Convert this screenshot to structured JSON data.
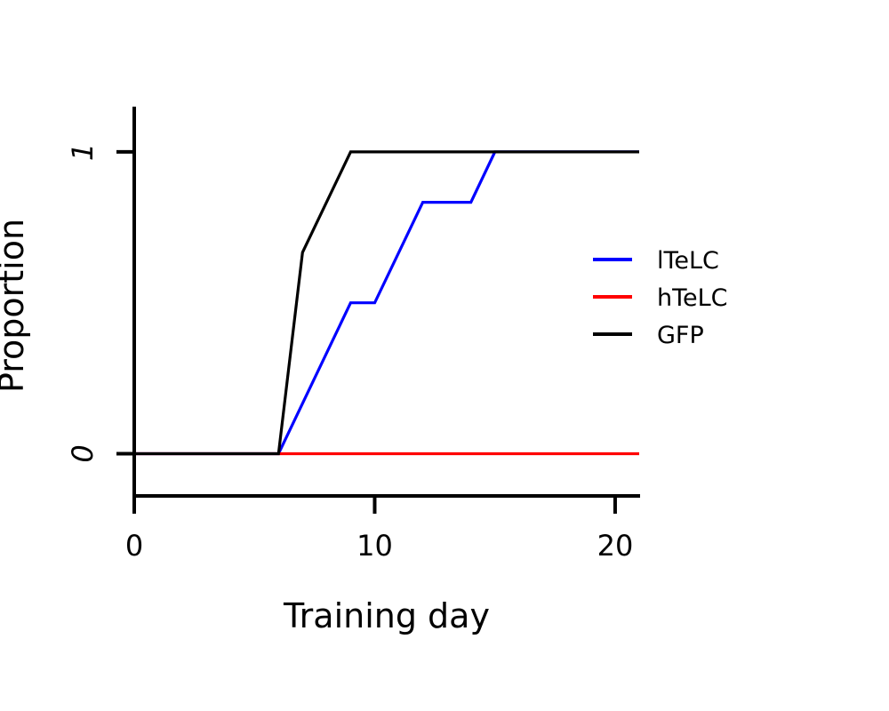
{
  "chart_data": {
    "type": "line",
    "title": "",
    "xlabel": "Training day",
    "ylabel": "Proportion",
    "xlim": [
      0,
      21
    ],
    "ylim": [
      -0.14,
      1.15
    ],
    "xticks": [
      0,
      10,
      20
    ],
    "xtick_labels": [
      "0",
      "10",
      "20"
    ],
    "yticks": [
      0,
      1
    ],
    "ytick_labels": [
      "0",
      "1"
    ],
    "grid": false,
    "legend_position": "right",
    "series": [
      {
        "name": "lTeLC",
        "color": "#0000ff",
        "x": [
          0,
          6,
          9,
          10,
          12,
          14,
          15,
          21
        ],
        "y": [
          0,
          0,
          0.5,
          0.5,
          0.833,
          0.833,
          1,
          1
        ]
      },
      {
        "name": "hTeLC",
        "color": "#ff0000",
        "x": [
          0,
          6,
          21
        ],
        "y": [
          0,
          0,
          0
        ]
      },
      {
        "name": "GFP",
        "color": "#000000",
        "x": [
          0,
          6,
          7,
          9,
          21
        ],
        "y": [
          0,
          0,
          0.667,
          1,
          1
        ]
      }
    ]
  }
}
